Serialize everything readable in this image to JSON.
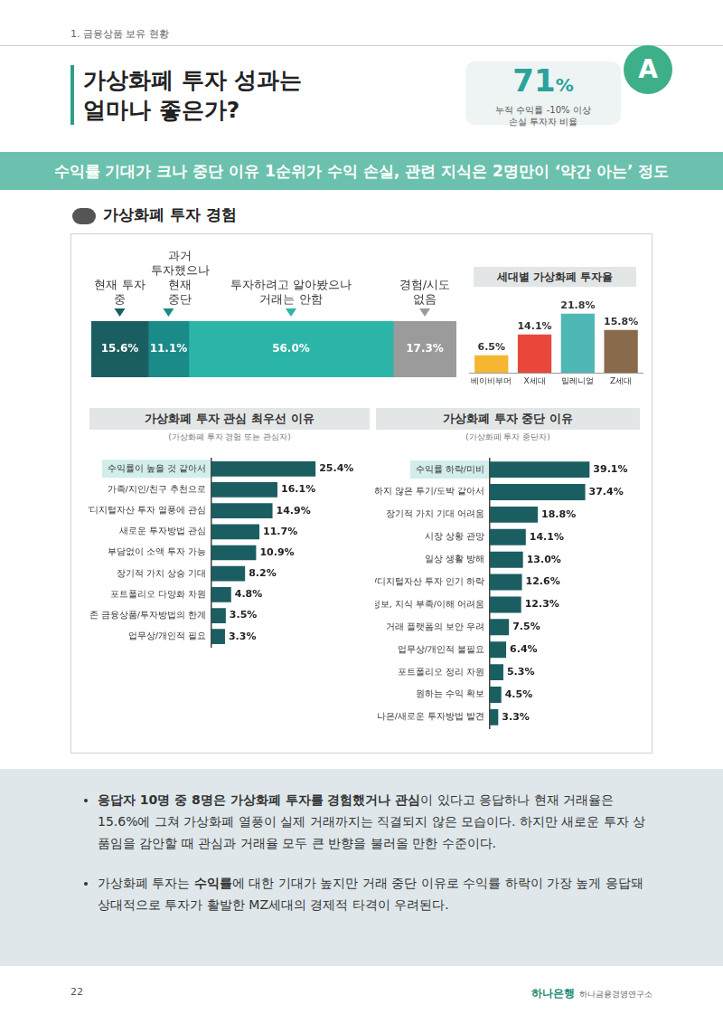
{
  "header": {
    "section": "1. 금융상품 보유 현황",
    "title_lines": [
      "가상화폐 투자 성과는",
      "얼마나 좋은가?"
    ]
  },
  "highlight": {
    "value": "71%",
    "caption": [
      "누적 수익률 -10% 이상",
      "손실 투자자 비율"
    ],
    "badge": "A"
  },
  "banner": "수익률 기대가 크나 중단 이유 1순위가 수익 손실, 관련 지식은 2명만이 ‘약간 아는’ 정도",
  "section_title": "가상화폐 투자 경험",
  "chart_data": [
    {
      "type": "bar",
      "orientation": "horizontal",
      "stacked": true,
      "data_labels": true,
      "tick_labels": false,
      "legend": "top",
      "categories": [
        null
      ],
      "xlim": [
        0,
        100
      ],
      "series": [
        {
          "name": "현재 투자 중",
          "color": "#1b5e62",
          "values": [
            15.6
          ],
          "value_labels": [
            "15.6%"
          ]
        },
        {
          "name": "과거 투자했으나 현재 중단",
          "color": "#1a8b89",
          "values": [
            11.1
          ],
          "value_labels": [
            "11.1%"
          ]
        },
        {
          "name": "투자하려고 알아봤으나 거래는 안함",
          "color": "#2bb5a8",
          "values": [
            56.0
          ],
          "value_labels": [
            "56.0%"
          ]
        },
        {
          "name": "경험/시도 없음",
          "color": "#9b9b9b",
          "values": [
            17.3
          ],
          "value_labels": [
            "17.3%"
          ]
        }
      ]
    },
    {
      "type": "bar",
      "title": "세대별 가상화폐 투자율",
      "data_labels": true,
      "tick_labels": "x",
      "categories": [
        "베이비부머",
        "X세대",
        "밀레니얼",
        "Z세대"
      ],
      "values": [
        6.5,
        14.1,
        21.8,
        15.8
      ],
      "value_labels": [
        "6.5%",
        "14.1%",
        "21.8%",
        "15.8%"
      ],
      "colors": [
        "#f5b731",
        "#e8473a",
        "#4fb8b5",
        "#8a6a4c"
      ],
      "ylim": [
        0,
        25
      ]
    },
    {
      "type": "bar",
      "orientation": "horizontal",
      "title": "가상화폐 투자 관심 최우선 이유",
      "subtitle": "(가상화폐 투자 경험 또는 관심자)",
      "data_labels": true,
      "tick_labels": "y",
      "color": "#1b5e62",
      "categories": [
        "수익률이 높을 것 같아서",
        "가족/지인/친구 추천으로",
        "가상/디지털자산 투자 열풍에 관심",
        "새로운 투자방법 관심",
        "부담없이 소액 투자 가능",
        "장기적 가치 상승 기대",
        "포트폴리오 다양화 차원",
        "기존 금융상품/투자방법의 한계",
        "업무상/개인적 필요"
      ],
      "values": [
        25.4,
        16.1,
        14.9,
        11.7,
        10.9,
        8.2,
        4.8,
        3.5,
        3.3
      ],
      "value_labels": [
        "25.4%",
        "16.1%",
        "14.9%",
        "11.7%",
        "10.9%",
        "8.2%",
        "4.8%",
        "3.5%",
        "3.3%"
      ],
      "xlim": [
        0,
        30
      ]
    },
    {
      "type": "bar",
      "orientation": "horizontal",
      "title": "가상화폐 투자 중단 이유",
      "subtitle": "(가상화폐 투자 중단자)",
      "data_labels": true,
      "tick_labels": "y",
      "color": "#1b5e62",
      "categories": [
        "수익률 하락/미비",
        "안전하지 않은 투기/도박 같아서",
        "장기적 가치 기대 어려움",
        "시장 상황 관망",
        "일상 생활 방해",
        "가상/디지털자산 투자 인기 하락",
        "관련 정보, 지식 부족/이해 어려움",
        "거래 플랫폼의 보안 우려",
        "업무상/개인적 불필요",
        "포트폴리오 정리 차원",
        "원하는 수익 확보",
        "더 나은/새로운 투자방법 발견"
      ],
      "values": [
        39.1,
        37.4,
        18.8,
        14.1,
        13.0,
        12.6,
        12.3,
        7.5,
        6.4,
        5.3,
        4.5,
        3.3
      ],
      "value_labels": [
        "39.1%",
        "37.4%",
        "18.8%",
        "14.1%",
        "13.0%",
        "12.6%",
        "12.3%",
        "7.5%",
        "6.4%",
        "5.3%",
        "4.5%",
        "3.3%"
      ],
      "xlim": [
        0,
        45
      ]
    }
  ],
  "notes": [
    [
      {
        "text": "응답자 10명 중 8명은 가상화폐 투자를 경험했거나 관심",
        "bold": true
      },
      {
        "text": "이 있다고 응답하나 현재 거래율은 15.6%에 그쳐 가상화폐 열풍이 실제 거래까지는 직결되지 않은 모습이다. 하지만 새로운 투자 상품임을 감안할 때 관심과 거래율 모두 큰 반향을 불러올 만한 수준이다."
      }
    ],
    [
      {
        "text": "가상화폐 투자는 "
      },
      {
        "text": "수익률",
        "bold": true
      },
      {
        "text": "에 대한 기대가 높지만 거래 중단 이유로 수익률 하락이 가장 높게 응답돼 상대적으로 투자가 활발한 MZ세대의 경제적 타격이 우려된다."
      }
    ]
  ],
  "footer": {
    "page": "22",
    "brand": "하나은행",
    "org": "하나금융경영연구소"
  }
}
